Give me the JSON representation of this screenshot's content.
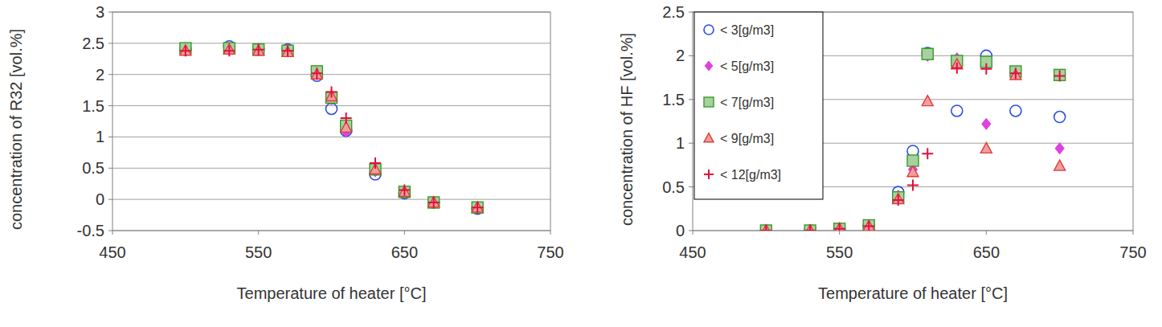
{
  "chart_data": [
    {
      "type": "scatter",
      "y_label": "concentration of R32 [vol.%]",
      "x_label": "Temperature of heater [°C]",
      "x": [
        500,
        530,
        550,
        570,
        590,
        600,
        610,
        630,
        650,
        670,
        700
      ],
      "xlim": [
        450,
        750
      ],
      "xticks": [
        450,
        550,
        650,
        750
      ],
      "ylim": [
        -0.5,
        3
      ],
      "yticks": [
        -0.5,
        0,
        0.5,
        1,
        1.5,
        2,
        2.5,
        3
      ],
      "grid": true,
      "series": [
        {
          "color": "#2a4fe0",
          "marker": "circle",
          "values": [
            2.4,
            2.45,
            2.4,
            2.4,
            1.98,
            1.45,
            1.1,
            0.4,
            0.1,
            -0.05,
            -0.15
          ]
        },
        {
          "color": "#e040e0",
          "marker": "diamond",
          "values": [
            2.42,
            2.42,
            2.4,
            2.38,
            2.0,
            1.6,
            1.08,
            0.45,
            0.12,
            -0.05,
            -0.13
          ]
        },
        {
          "color": "#3a9a2a",
          "marker": "square",
          "values": [
            2.42,
            2.42,
            2.4,
            2.38,
            2.05,
            1.63,
            1.18,
            0.48,
            0.12,
            -0.05,
            -0.13
          ]
        },
        {
          "color": "#e03c3c",
          "marker": "triangle",
          "values": [
            2.38,
            2.4,
            2.38,
            2.36,
            2.0,
            1.65,
            1.15,
            0.48,
            0.12,
            -0.05,
            -0.13
          ]
        },
        {
          "color": "#e0103c",
          "marker": "plus",
          "values": [
            2.38,
            2.38,
            2.4,
            2.38,
            2.02,
            1.72,
            1.3,
            0.58,
            0.15,
            -0.05,
            -0.13
          ]
        }
      ]
    },
    {
      "type": "scatter",
      "y_label": "concentration of HF [vol.%]",
      "x_label": "Temperature of heater [°C]",
      "x": [
        500,
        530,
        550,
        570,
        590,
        600,
        610,
        630,
        650,
        670,
        700
      ],
      "xlim": [
        450,
        750
      ],
      "xticks": [
        450,
        550,
        650,
        750
      ],
      "ylim": [
        0,
        2.5
      ],
      "yticks": [
        0,
        0.5,
        1,
        1.5,
        2,
        2.5
      ],
      "grid": true,
      "legend": "upper left",
      "series": [
        {
          "name": "< 3[g/m3]",
          "color": "#2a4fe0",
          "marker": "circle",
          "values": [
            0,
            0,
            0.02,
            0.05,
            0.44,
            0.91,
            2.03,
            1.37,
            2.0,
            1.37,
            1.3
          ]
        },
        {
          "name": "< 5[g/m3]",
          "color": "#e040e0",
          "marker": "diamond",
          "values": [
            0,
            0,
            0.02,
            0.05,
            0.4,
            0.7,
            2.0,
            1.97,
            1.22,
            1.8,
            0.94
          ]
        },
        {
          "name": "< 7[g/m3]",
          "color": "#3a9a2a",
          "marker": "square",
          "values": [
            0,
            0,
            0.02,
            0.06,
            0.38,
            0.8,
            2.02,
            1.94,
            1.93,
            1.82,
            1.78
          ]
        },
        {
          "name": "< 9[g/m3]",
          "color": "#e03c3c",
          "marker": "triangle",
          "values": [
            0,
            0,
            0.02,
            0.05,
            0.36,
            0.67,
            1.48,
            1.9,
            0.94,
            1.78,
            0.74
          ]
        },
        {
          "name": "< 12[g/m3]",
          "color": "#e0103c",
          "marker": "plus",
          "values": [
            0,
            0,
            0.02,
            0.05,
            0.35,
            0.52,
            0.88,
            1.86,
            1.85,
            1.8,
            1.77
          ]
        }
      ]
    }
  ]
}
